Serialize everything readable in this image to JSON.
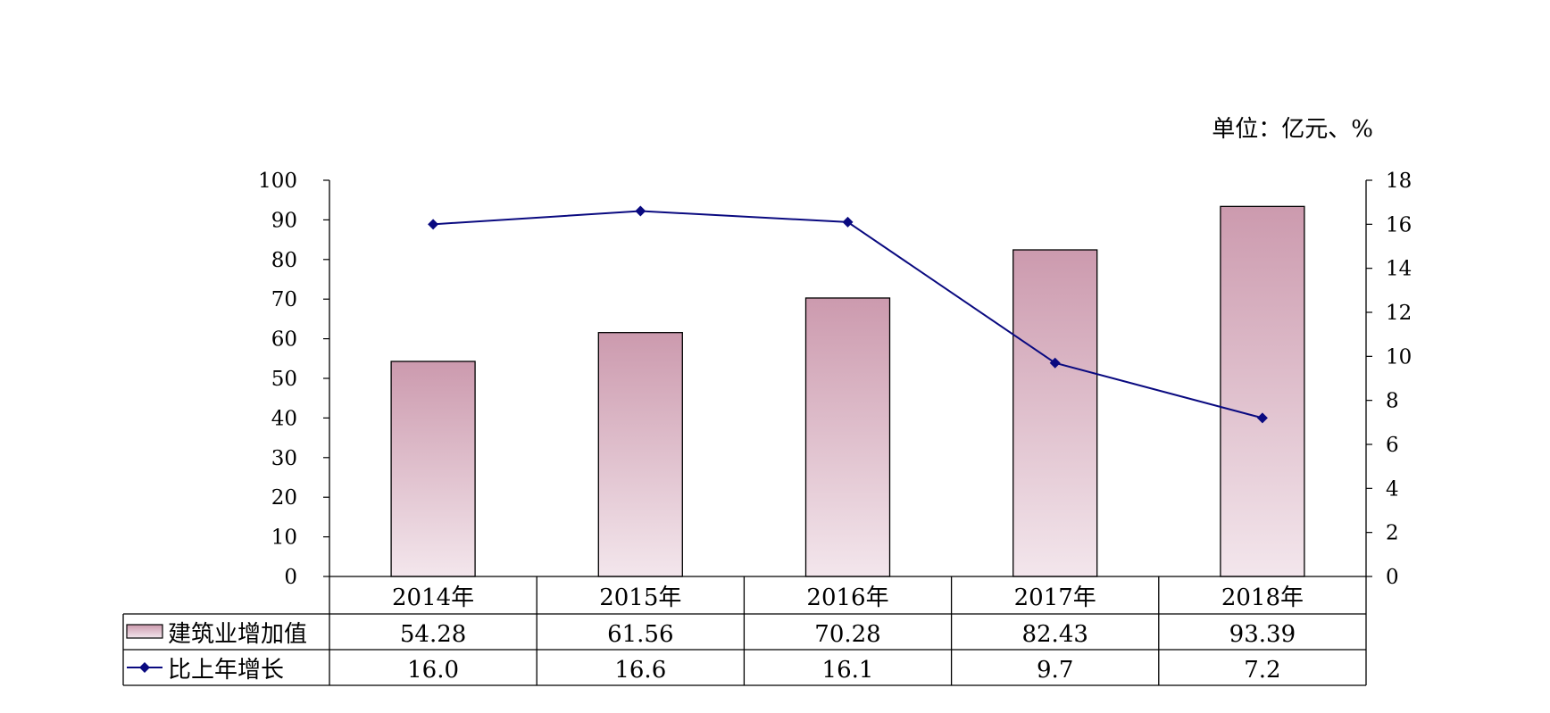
{
  "chart_data": {
    "type": "bar",
    "unit_label": "单位：亿元、%",
    "categories": [
      "2014年",
      "2015年",
      "2016年",
      "2017年",
      "2018年"
    ],
    "series": [
      {
        "name": "建筑业增加值",
        "type": "bar",
        "axis": "left",
        "values": [
          54.28,
          61.56,
          70.28,
          82.43,
          93.39
        ],
        "labels": [
          "54.28",
          "61.56",
          "70.28",
          "82.43",
          "93.39"
        ],
        "color_top": "#cc9aae",
        "color_bottom": "#f3e6ec"
      },
      {
        "name": "比上年增长",
        "type": "line",
        "axis": "right",
        "values": [
          16.0,
          16.6,
          16.1,
          9.7,
          7.2
        ],
        "labels": [
          "16.0",
          "16.6",
          "16.1",
          "9.7",
          "7.2"
        ],
        "color": "#0a0a80"
      }
    ],
    "y_left": {
      "min": 0,
      "max": 100,
      "ticks": [
        "0",
        "10",
        "20",
        "30",
        "40",
        "50",
        "60",
        "70",
        "80",
        "90",
        "100"
      ]
    },
    "y_right": {
      "min": 0,
      "max": 18,
      "ticks": [
        "0",
        "2",
        "4",
        "6",
        "8",
        "10",
        "12",
        "14",
        "16",
        "18"
      ]
    },
    "grid": false,
    "legend": "data-table-below"
  }
}
